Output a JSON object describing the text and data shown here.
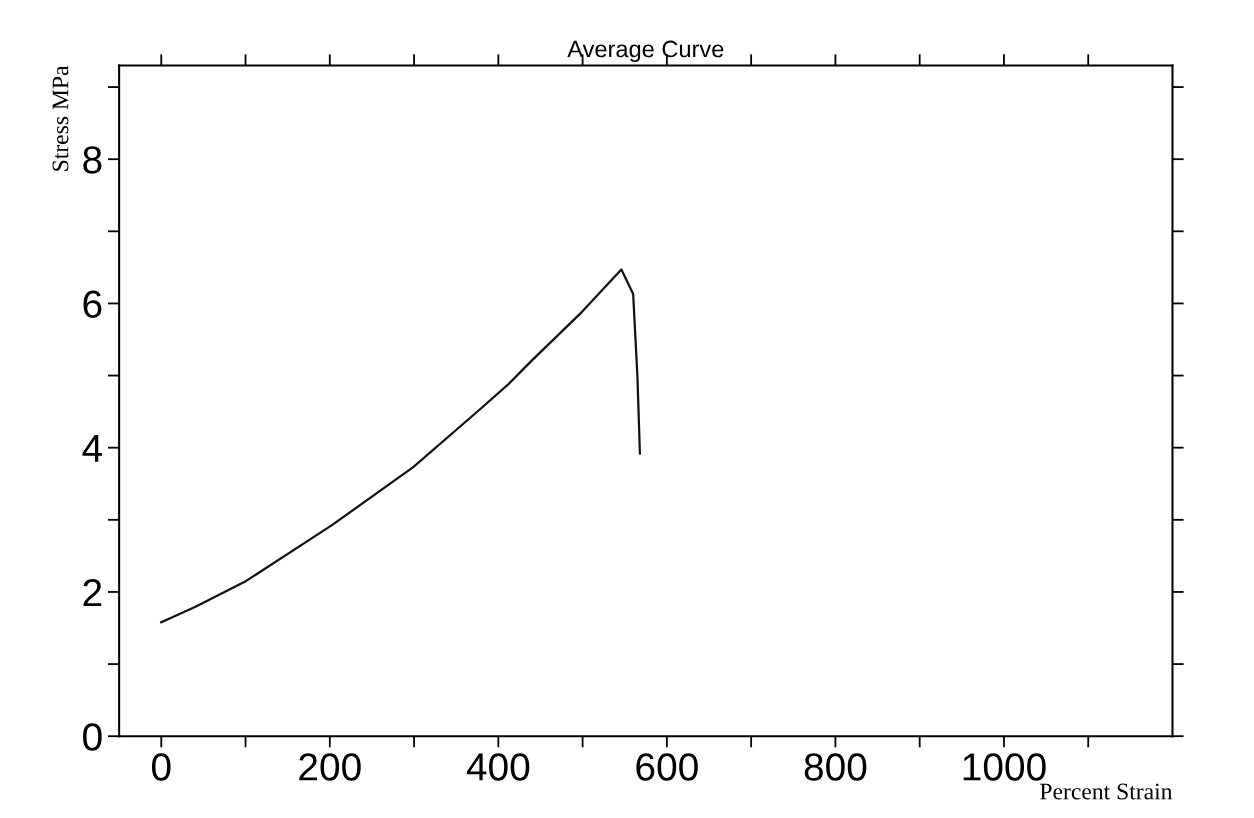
{
  "chart_data": {
    "type": "line",
    "title": "Average Curve",
    "xlabel": "Percent Strain",
    "ylabel": "Stress MPa",
    "series": [
      {
        "color": "#111111",
        "x": [
          0,
          40,
          99,
          203,
          299,
          379,
          411,
          439,
          499,
          546,
          560,
          565,
          568
        ],
        "values": [
          1.58,
          1.79,
          2.14,
          2.93,
          3.73,
          4.54,
          4.87,
          5.2,
          5.88,
          6.47,
          6.13,
          5.0,
          3.92
        ]
      }
    ],
    "xlim": [
      -50,
      1200
    ],
    "ylim": [
      0,
      9.3
    ],
    "xticks": [
      0,
      {
        "value": 100,
        "label": null
      },
      200,
      {
        "value": 300,
        "label": null
      },
      400,
      {
        "value": 500,
        "label": null
      },
      600,
      {
        "value": 700,
        "label": null
      },
      800,
      {
        "value": 900,
        "label": null
      },
      1000,
      {
        "value": 1100,
        "label": null
      }
    ],
    "yticks": [
      0,
      {
        "value": 1,
        "label": null
      },
      2,
      {
        "value": 3,
        "label": null
      },
      4,
      {
        "value": 5,
        "label": null
      },
      6,
      {
        "value": 7,
        "label": null
      },
      8,
      {
        "value": 9,
        "label": null
      }
    ],
    "grid": false,
    "legend": false,
    "marker": "none",
    "line_style": "solid"
  }
}
